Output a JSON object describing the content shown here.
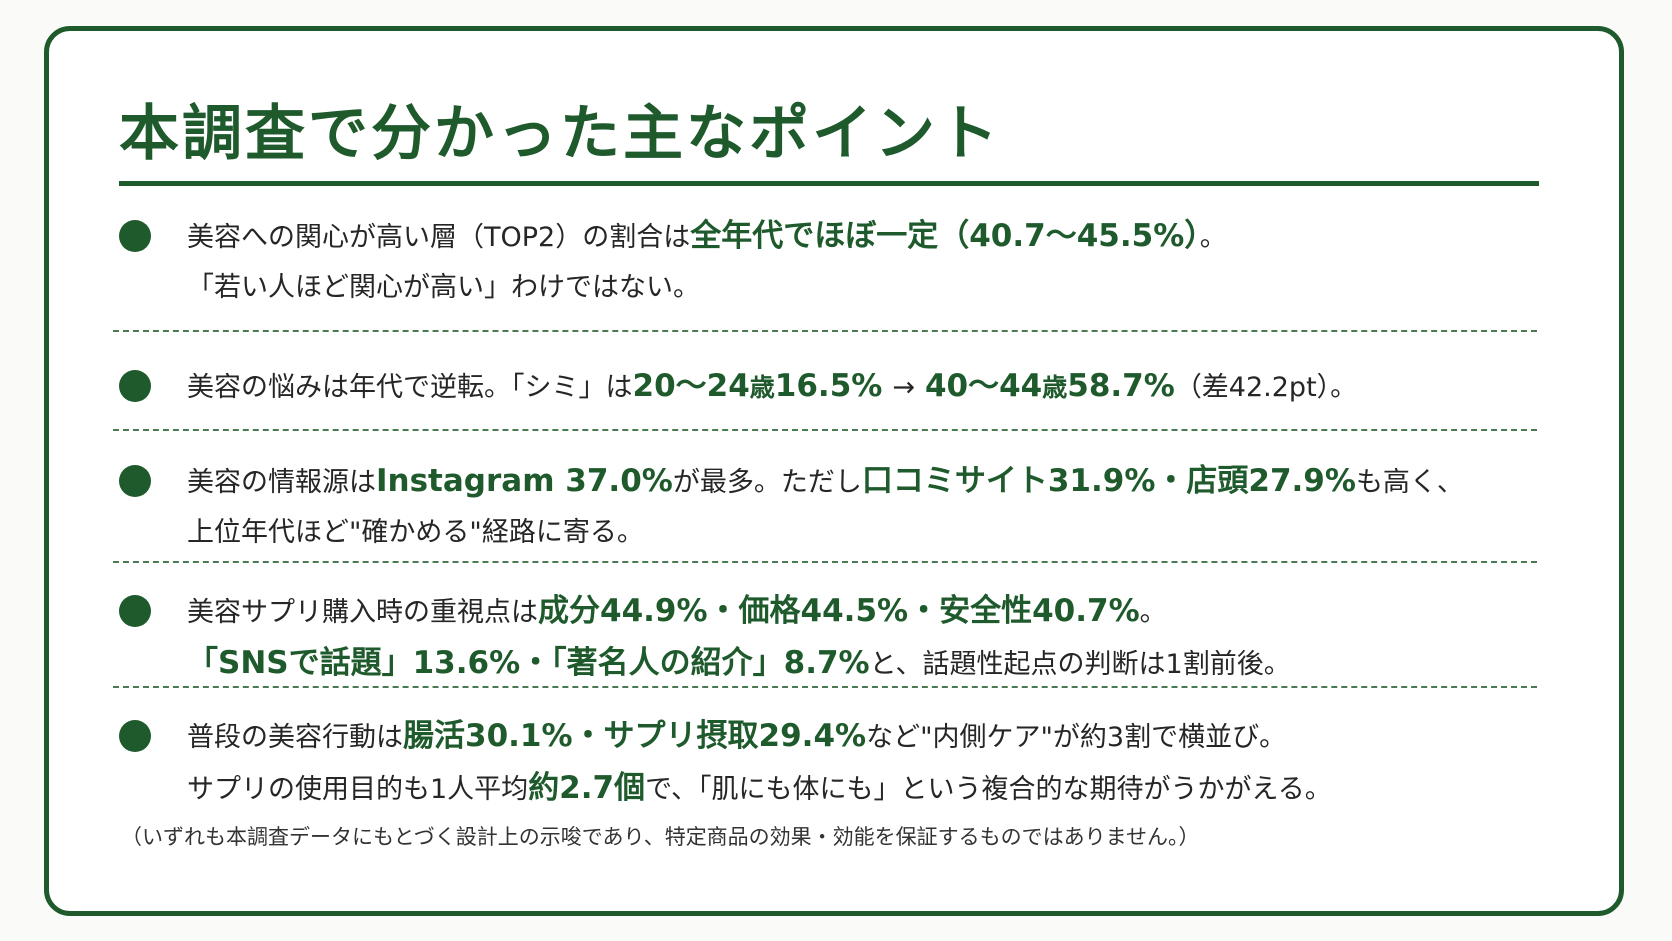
{
  "title": "本調査で分かった主なポイント",
  "points": [
    {
      "line1_a": "美容への関心が高い層（TOP2）の割合は",
      "line1_hl": "全年代でほぼ一定（40.7〜45.5%）",
      "line1_b": "。",
      "line2": "「若い人ほど関心が高い」わけではない。"
    },
    {
      "t1": "美容の悩みは年代で逆転。「シミ」は",
      "h1": "20〜24",
      "h1_unit": "歳",
      "h2": "16.5%",
      "arrow": "→",
      "h3": "40〜44",
      "h3_unit": "歳",
      "h4": "58.7%",
      "t2": "（差42.2pt）。"
    },
    {
      "t1": "美容の情報源は",
      "h1": "Instagram 37.0%",
      "t2": "が最多。ただし",
      "h2": "口コミサイト31.9%・店頭27.9%",
      "t3": "も高く、",
      "line2": "上位年代ほど\"確かめる\"経路に寄る。"
    },
    {
      "t1": "美容サプリ購入時の重視点は",
      "h1": "成分44.9%・価格44.5%・安全性40.7%",
      "t2": "。",
      "h2": "「SNSで話題」13.6%・「著名人の紹介」8.7%",
      "t3": "と、話題性起点の判断は1割前後。"
    },
    {
      "t1": "普段の美容行動は",
      "h1": "腸活30.1%・サプリ摂取29.4%",
      "t2": "など\"内側ケア\"が約3割で横並び。",
      "t3": "サプリの使用目的も1人平均",
      "h2": "約2.7個",
      "t4": "で、「肌にも体にも」という複合的な期待がうかがえる。"
    }
  ],
  "note": "（いずれも本調査データにもとづく設計上の示唆であり、特定商品の効果・効能を保証するものではありません。）",
  "colors": {
    "accent": "#1f5a2c",
    "text": "#262626"
  }
}
